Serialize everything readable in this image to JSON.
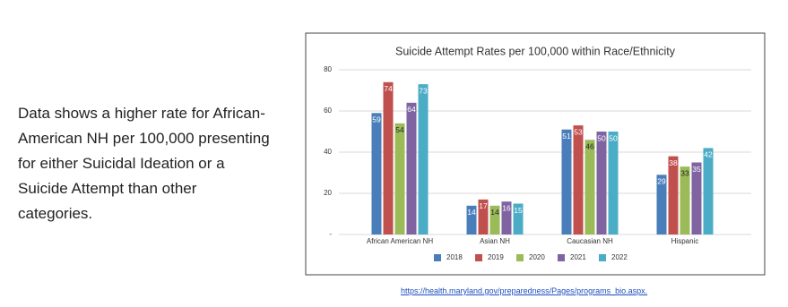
{
  "paragraph": "Data shows a higher rate for African-American NH per 100,000 presenting for either Suicidal Ideation or a Suicide Attempt than other categories.",
  "source_link": "https://health.maryland.gov/preparedness/Pages/programs_bio.aspx.",
  "chart_data": {
    "type": "bar",
    "title": "Suicide Attempt Rates per 100,000 within Race/Ethnicity",
    "categories": [
      "African American NH",
      "Asian NH",
      "Caucasian NH",
      "Hispanic"
    ],
    "series": [
      {
        "name": "2018",
        "color": "#4a7ebb",
        "values": [
          59,
          14,
          51,
          29
        ]
      },
      {
        "name": "2019",
        "color": "#c0504d",
        "values": [
          74,
          17,
          53,
          38
        ]
      },
      {
        "name": "2020",
        "color": "#9bbb59",
        "values": [
          54,
          14,
          46,
          33
        ]
      },
      {
        "name": "2021",
        "color": "#8064a2",
        "values": [
          64,
          16,
          50,
          35
        ]
      },
      {
        "name": "2022",
        "color": "#4bacc6",
        "values": [
          73,
          15,
          50,
          42
        ]
      }
    ],
    "ylim": [
      0,
      80
    ],
    "yticks": [
      {
        "value": 0,
        "label": "-"
      },
      20,
      40,
      60,
      80
    ],
    "grid": true,
    "legend": "bottom"
  }
}
